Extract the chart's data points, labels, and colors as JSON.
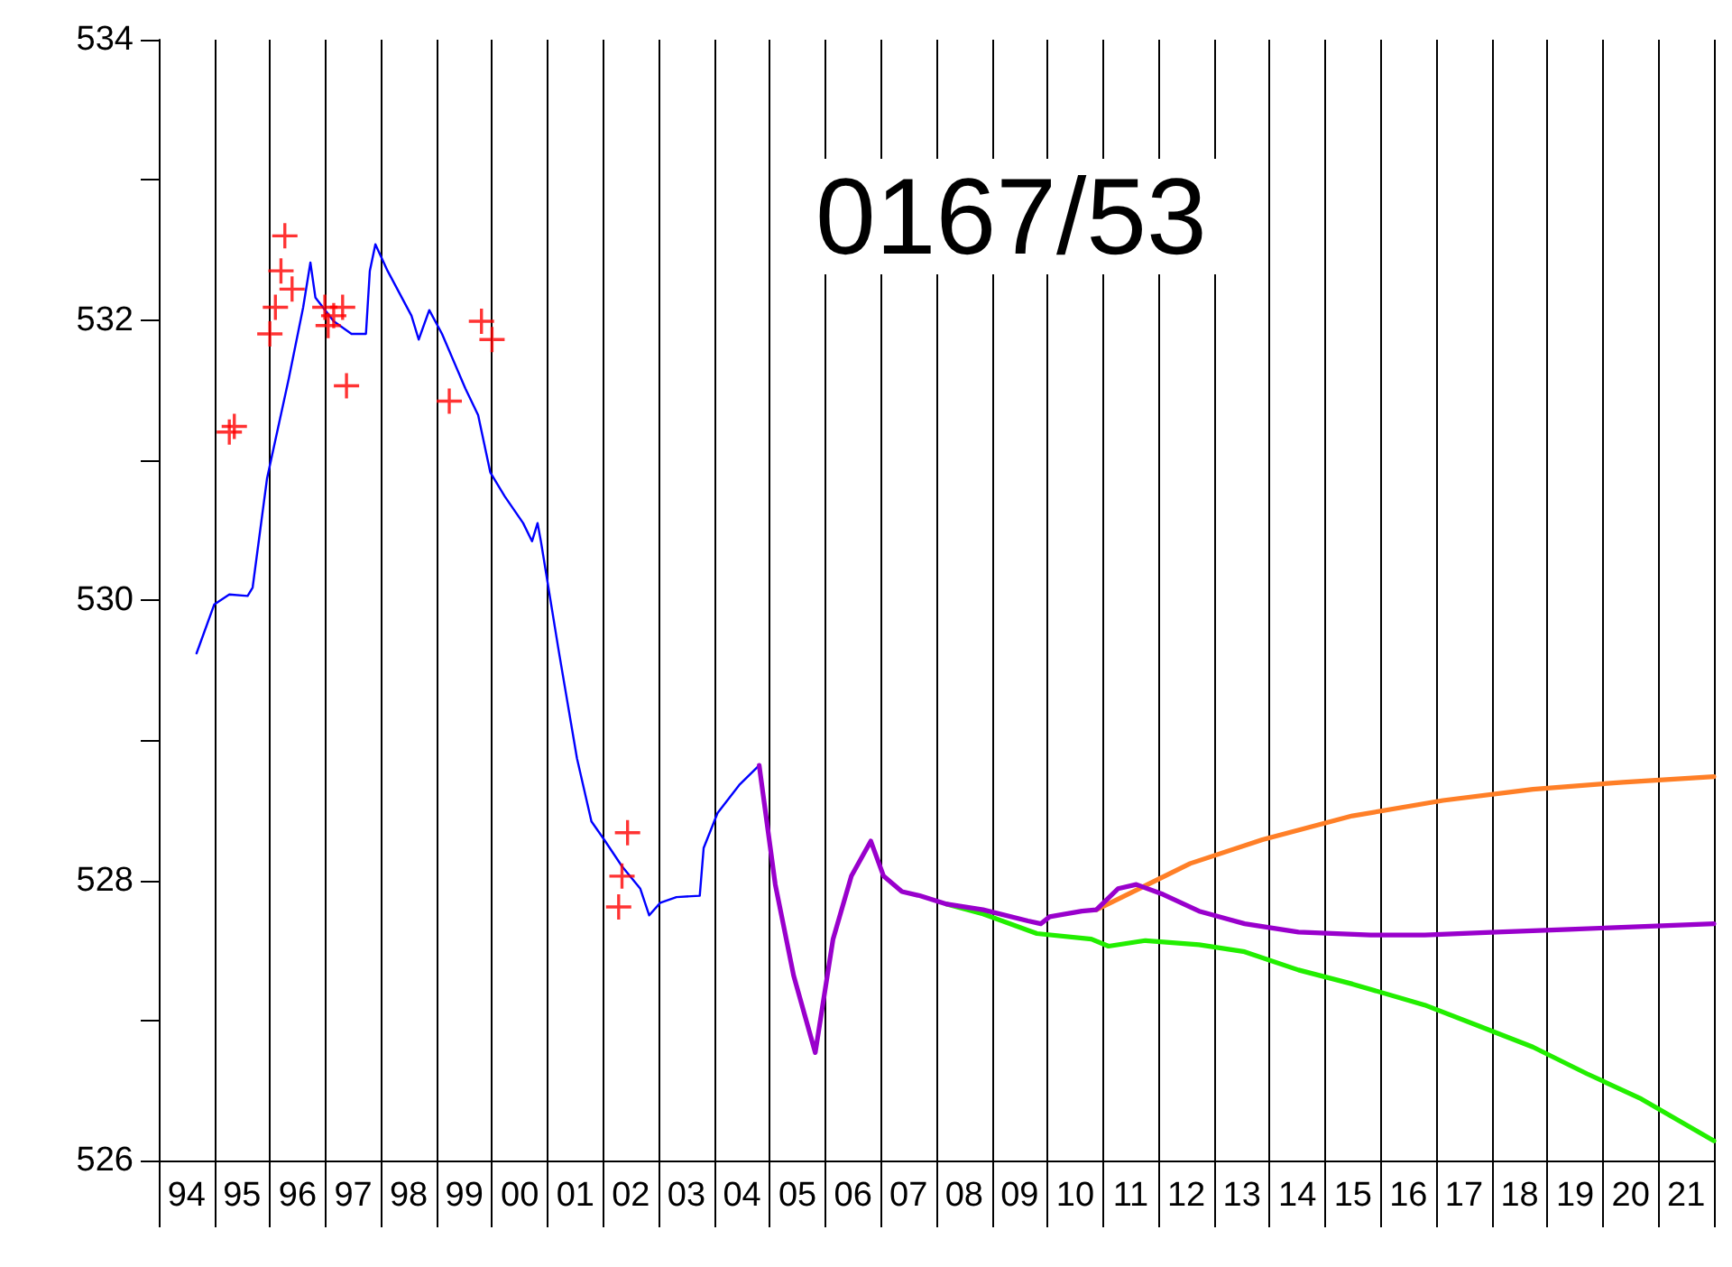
{
  "chart_data": {
    "type": "line",
    "title": "0167/53",
    "xlim": [
      1993.5,
      2021.5
    ],
    "xticks": [
      {
        "value": 1993.5,
        "label": null
      },
      {
        "value": 1994,
        "label": "94"
      },
      {
        "value": 1994.5,
        "label": null
      },
      {
        "value": 1995,
        "label": "95"
      },
      {
        "value": 1995.5,
        "label": null
      },
      {
        "value": 1996,
        "label": "96"
      },
      {
        "value": 1996.5,
        "label": null
      },
      {
        "value": 1997,
        "label": "97"
      },
      {
        "value": 1997.5,
        "label": null
      },
      {
        "value": 1998,
        "label": "98"
      },
      {
        "value": 1998.5,
        "label": null
      },
      {
        "value": 1999,
        "label": "99"
      },
      {
        "value": 1999.5,
        "label": null
      },
      {
        "value": 2000,
        "label": "00"
      },
      {
        "value": 2000.5,
        "label": null
      },
      {
        "value": 2001,
        "label": "01"
      },
      {
        "value": 2001.5,
        "label": null
      },
      {
        "value": 2002,
        "label": "02"
      },
      {
        "value": 2002.5,
        "label": null
      },
      {
        "value": 2003,
        "label": "03"
      },
      {
        "value": 2003.5,
        "label": null
      },
      {
        "value": 2004,
        "label": "04"
      },
      {
        "value": 2004.5,
        "label": null
      },
      {
        "value": 2005,
        "label": "05"
      },
      {
        "value": 2005.5,
        "label": null
      },
      {
        "value": 2006,
        "label": "06"
      },
      {
        "value": 2006.5,
        "label": null
      },
      {
        "value": 2007,
        "label": "07"
      },
      {
        "value": 2007.5,
        "label": null
      },
      {
        "value": 2008,
        "label": "08"
      },
      {
        "value": 2008.5,
        "label": null
      },
      {
        "value": 2009,
        "label": "09"
      },
      {
        "value": 2009.5,
        "label": null
      },
      {
        "value": 2010,
        "label": "10"
      },
      {
        "value": 2010.5,
        "label": null
      },
      {
        "value": 2011,
        "label": "11"
      },
      {
        "value": 2011.5,
        "label": null
      },
      {
        "value": 2012,
        "label": "12"
      },
      {
        "value": 2012.5,
        "label": null
      },
      {
        "value": 2013,
        "label": "13"
      },
      {
        "value": 2013.5,
        "label": null
      },
      {
        "value": 2014,
        "label": "14"
      },
      {
        "value": 2014.5,
        "label": null
      },
      {
        "value": 2015,
        "label": "15"
      },
      {
        "value": 2015.5,
        "label": null
      },
      {
        "value": 2016,
        "label": "16"
      },
      {
        "value": 2016.5,
        "label": null
      },
      {
        "value": 2017,
        "label": "17"
      },
      {
        "value": 2017.5,
        "label": null
      },
      {
        "value": 2018,
        "label": "18"
      },
      {
        "value": 2018.5,
        "label": null
      },
      {
        "value": 2019,
        "label": "19"
      },
      {
        "value": 2019.5,
        "label": null
      },
      {
        "value": 2020,
        "label": "20"
      },
      {
        "value": 2020.5,
        "label": null
      },
      {
        "value": 2021,
        "label": "21"
      },
      {
        "value": 2021.5,
        "label": null
      }
    ],
    "ylim": [
      526,
      534
    ],
    "yticks": [
      526,
      {
        "value": 527,
        "label": null
      },
      528,
      {
        "value": 529,
        "label": null
      },
      530,
      {
        "value": 531,
        "label": null
      },
      532,
      {
        "value": 533,
        "label": null
      },
      534
    ],
    "grid": "x",
    "series": [
      {
        "color": "#0000ff",
        "marker": "none",
        "x": [
          1994.18,
          1994.5,
          1994.77,
          1995.1,
          1995.19,
          1995.45,
          1995.84,
          1996.1,
          1996.23,
          1996.32,
          1996.65,
          1996.97,
          1997.23,
          1997.3,
          1997.4,
          1997.62,
          1998.05,
          1998.18,
          1998.37,
          1998.6,
          1999.02,
          1999.25,
          1999.47,
          1999.73,
          2000.06,
          2000.22,
          2000.32,
          2000.38,
          2000.7,
          2001.03,
          2001.29,
          2001.52,
          2001.84,
          2002.17,
          2002.33,
          2002.53,
          2002.82,
          2003.24,
          2003.31,
          2003.56,
          2003.95,
          2004.31
        ],
        "values": [
          529.62,
          529.97,
          530.04,
          530.03,
          530.09,
          530.87,
          531.58,
          532.09,
          532.41,
          532.16,
          531.99,
          531.9,
          531.9,
          532.35,
          532.54,
          532.35,
          532.03,
          531.86,
          532.07,
          531.9,
          531.51,
          531.32,
          530.91,
          530.74,
          530.55,
          530.42,
          530.55,
          530.42,
          529.64,
          528.87,
          528.42,
          528.29,
          528.1,
          527.94,
          527.75,
          527.84,
          527.88,
          527.89,
          528.23,
          528.48,
          528.68,
          528.82
        ]
      },
      {
        "color": "#ff7f27",
        "marker": "none",
        "x": [
          2010.38,
          2011.1,
          2012.07,
          2013.37,
          2014.99,
          2016.62,
          2018.24,
          2019.86,
          2021.5
        ],
        "values": [
          527.79,
          527.93,
          528.12,
          528.29,
          528.46,
          528.57,
          528.65,
          528.7,
          528.74
        ]
      },
      {
        "color": "#22ee00",
        "marker": "none",
        "x": [
          2007.69,
          2008.34,
          2009.31,
          2010.29,
          2010.6,
          2011.26,
          2012.23,
          2013.05,
          2014.02,
          2014.99,
          2016.29,
          2017.27,
          2018.24,
          2019.21,
          2020.19,
          2021.5
        ],
        "values": [
          527.83,
          527.76,
          527.62,
          527.58,
          527.53,
          527.57,
          527.54,
          527.49,
          527.36,
          527.26,
          527.11,
          526.96,
          526.81,
          526.62,
          526.44,
          526.14
        ]
      },
      {
        "color": "#9900cc",
        "marker": "none",
        "x": [
          2004.31,
          2004.6,
          2004.93,
          2005.32,
          2005.64,
          2005.97,
          2006.32,
          2006.55,
          2006.88,
          2007.2,
          2007.69,
          2008.34,
          2009.15,
          2009.38,
          2009.54,
          2010.12,
          2010.38,
          2010.77,
          2011.1,
          2011.58,
          2012.23,
          2013.05,
          2014.02,
          2015.32,
          2016.29,
          2017.59,
          2018.89,
          2021.5
        ],
        "values": [
          528.82,
          527.97,
          527.32,
          526.77,
          527.58,
          528.03,
          528.28,
          528.03,
          527.92,
          527.89,
          527.83,
          527.79,
          527.71,
          527.69,
          527.74,
          527.78,
          527.79,
          527.94,
          527.97,
          527.9,
          527.78,
          527.69,
          527.63,
          527.61,
          527.61,
          527.63,
          527.65,
          527.69
        ]
      },
      {
        "type": "scatter",
        "color": "#ff0000",
        "marker": "cross",
        "x": [
          1994.77,
          1994.86,
          1995.5,
          1995.6,
          1995.7,
          1995.77,
          1995.9,
          1996.49,
          1996.55,
          1996.65,
          1996.81,
          1996.88,
          1998.73,
          1999.31,
          1999.5,
          2001.78,
          2001.84,
          2001.94
        ],
        "values": [
          531.2,
          531.24,
          531.9,
          532.09,
          532.35,
          532.6,
          532.22,
          532.09,
          531.96,
          532.03,
          532.09,
          531.53,
          531.42,
          531.99,
          531.86,
          527.81,
          528.03,
          528.34
        ]
      }
    ]
  }
}
